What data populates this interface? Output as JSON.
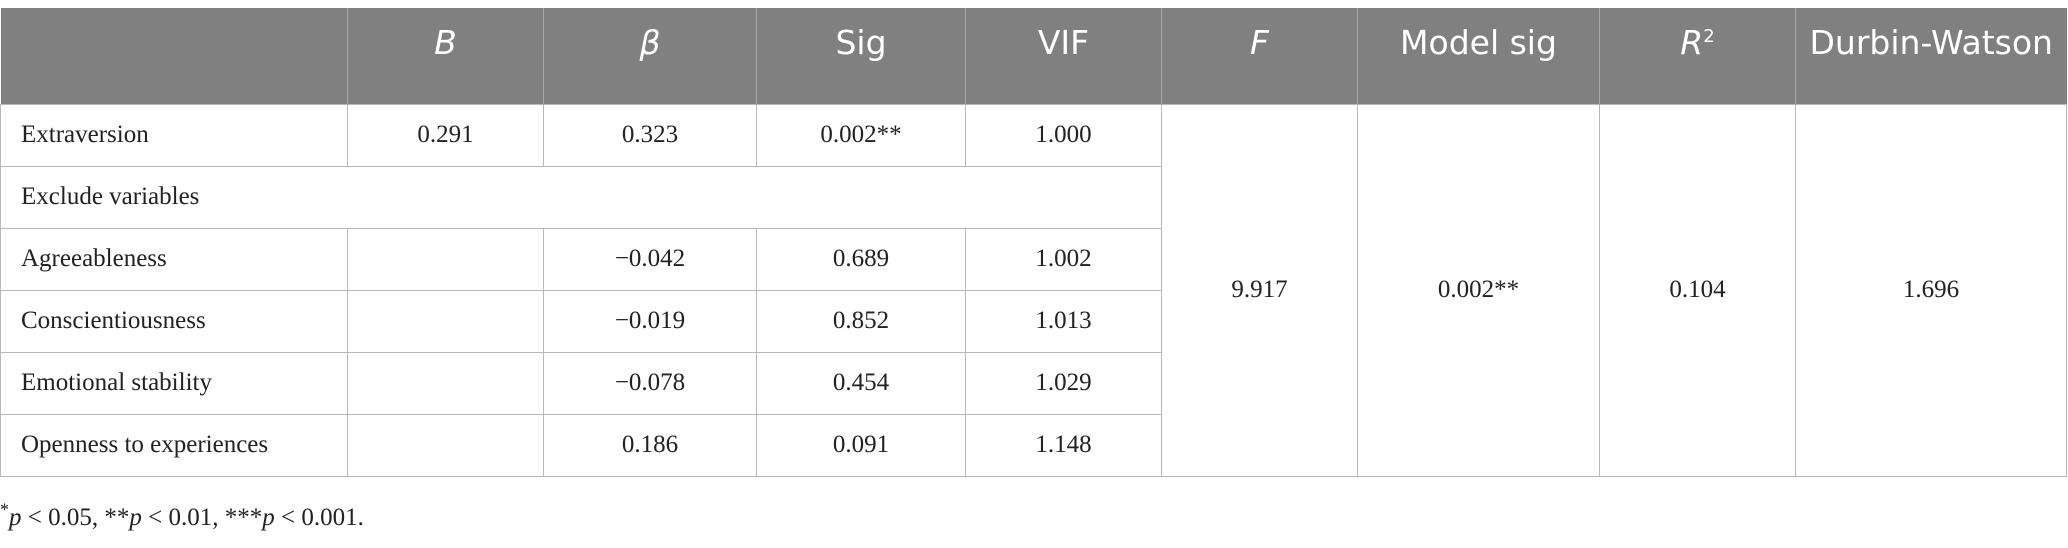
{
  "table": {
    "headers": [
      "",
      "B",
      "β",
      "Sig",
      "VIF",
      "F",
      "Model sig",
      "R",
      "Durbin-Watson"
    ],
    "r2_superscript": "2",
    "rows": [
      [
        "Extraversion",
        "0.291",
        "0.323",
        "0.002**",
        "1.000"
      ],
      [
        "Exclude variables"
      ],
      [
        "Agreeableness",
        "",
        "−0.042",
        "0.689",
        "1.002"
      ],
      [
        "Conscientiousness",
        "",
        "−0.019",
        "0.852",
        "1.013"
      ],
      [
        "Emotional stability",
        "",
        "−0.078",
        "0.454",
        "1.029"
      ],
      [
        "Openness to experiences",
        "",
        "0.186",
        "0.091",
        "1.148"
      ]
    ],
    "model": {
      "F": "9.917",
      "model_sig": "0.002**",
      "R2": "0.104",
      "durbin_watson": "1.696"
    }
  },
  "footnote": {
    "s1": "*",
    "p1": "p",
    "t1": " < 0.05, **",
    "p2": "p",
    "t2": " < 0.01, ***",
    "p3": "p",
    "t3": " < 0.001."
  }
}
